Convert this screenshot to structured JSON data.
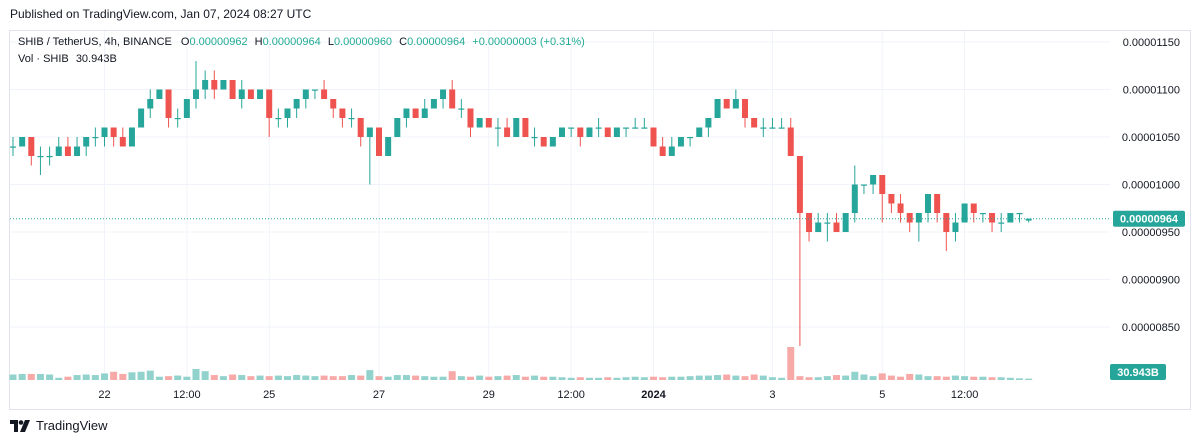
{
  "header": {
    "published": "Published on TradingView.com, Jan 07, 2024 08:27 UTC"
  },
  "legend": {
    "symbol": "SHIB / TetherUS, 4h, BINANCE",
    "open_label": "O",
    "open": "0.00000962",
    "high_label": "H",
    "high": "0.00000964",
    "low_label": "L",
    "low": "0.00000960",
    "close_label": "C",
    "close": "0.00000964",
    "change": "+0.00000003 (+0.31%)",
    "volume_label": "Vol · SHIB",
    "volume": "30.943B"
  },
  "footer": {
    "brand": "TradingView"
  },
  "colors": {
    "up": "#26a69a",
    "down": "#ef5350",
    "up_volume": "#92d2cc",
    "down_volume": "#f7a9a7",
    "grid": "#f0f3fa",
    "price_line": "#26a69a",
    "text": "#131722"
  },
  "chart_data": {
    "type": "candlestick",
    "title": "SHIB / TetherUS, 4h, BINANCE",
    "y_axis": {
      "unit": "USDT",
      "ylim": [
        8.05e-06,
        1.175e-05
      ],
      "tick_values": [
        1.15e-05,
        1.1e-05,
        1.05e-05,
        1e-05,
        9.5e-06,
        9e-06,
        8.5e-06
      ],
      "tick_labels": [
        "0.00001150",
        "0.00001100",
        "0.00001050",
        "0.00001000",
        "0.00000950",
        "0.00000900",
        "0.00000850"
      ]
    },
    "x_axis": {
      "labels": [
        {
          "label": "22",
          "bar": 10
        },
        {
          "label": "12:00",
          "bar": 19
        },
        {
          "label": "25",
          "bar": 28
        },
        {
          "label": "27",
          "bar": 40
        },
        {
          "label": "29",
          "bar": 52
        },
        {
          "label": "12:00",
          "bar": 61
        },
        {
          "label": "2024",
          "bar": 70
        },
        {
          "label": "3",
          "bar": 83
        },
        {
          "label": "5",
          "bar": 95
        },
        {
          "label": "12:00",
          "bar": 104
        }
      ]
    },
    "last_price": 9.64e-06,
    "last_price_label": "0.00000964",
    "volume_label": "30.943B",
    "candles_ohlc": [
      [
        1.04e-05,
        1.05e-05,
        1.03e-05,
        1.04e-05
      ],
      [
        1.04e-05,
        1.05e-05,
        1.04e-05,
        1.05e-05
      ],
      [
        1.05e-05,
        1.05e-05,
        1.02e-05,
        1.03e-05
      ],
      [
        1.03e-05,
        1.04e-05,
        1.01e-05,
        1.03e-05
      ],
      [
        1.03e-05,
        1.04e-05,
        1.02e-05,
        1.03e-05
      ],
      [
        1.03e-05,
        1.05e-05,
        1.03e-05,
        1.04e-05
      ],
      [
        1.04e-05,
        1.05e-05,
        1.03e-05,
        1.03e-05
      ],
      [
        1.03e-05,
        1.05e-05,
        1.03e-05,
        1.04e-05
      ],
      [
        1.04e-05,
        1.05e-05,
        1.03e-05,
        1.05e-05
      ],
      [
        1.05e-05,
        1.06e-05,
        1.04e-05,
        1.05e-05
      ],
      [
        1.05e-05,
        1.06e-05,
        1.04e-05,
        1.06e-05
      ],
      [
        1.06e-05,
        1.06e-05,
        1.04e-05,
        1.05e-05
      ],
      [
        1.05e-05,
        1.06e-05,
        1.04e-05,
        1.04e-05
      ],
      [
        1.04e-05,
        1.06e-05,
        1.04e-05,
        1.06e-05
      ],
      [
        1.06e-05,
        1.08e-05,
        1.06e-05,
        1.08e-05
      ],
      [
        1.08e-05,
        1.1e-05,
        1.07e-05,
        1.09e-05
      ],
      [
        1.09e-05,
        1.1e-05,
        1.09e-05,
        1.1e-05
      ],
      [
        1.1e-05,
        1.1e-05,
        1.06e-05,
        1.07e-05
      ],
      [
        1.07e-05,
        1.08e-05,
        1.06e-05,
        1.07e-05
      ],
      [
        1.07e-05,
        1.09e-05,
        1.07e-05,
        1.09e-05
      ],
      [
        1.09e-05,
        1.13e-05,
        1.08e-05,
        1.1e-05
      ],
      [
        1.1e-05,
        1.12e-05,
        1.09e-05,
        1.11e-05
      ],
      [
        1.11e-05,
        1.12e-05,
        1.09e-05,
        1.1e-05
      ],
      [
        1.1e-05,
        1.11e-05,
        1.1e-05,
        1.11e-05
      ],
      [
        1.11e-05,
        1.11e-05,
        1.09e-05,
        1.09e-05
      ],
      [
        1.09e-05,
        1.11e-05,
        1.08e-05,
        1.1e-05
      ],
      [
        1.1e-05,
        1.1e-05,
        1.09e-05,
        1.09e-05
      ],
      [
        1.09e-05,
        1.1e-05,
        1.09e-05,
        1.1e-05
      ],
      [
        1.1e-05,
        1.1e-05,
        1.05e-05,
        1.07e-05
      ],
      [
        1.07e-05,
        1.08e-05,
        1.06e-05,
        1.07e-05
      ],
      [
        1.07e-05,
        1.08e-05,
        1.06e-05,
        1.08e-05
      ],
      [
        1.08e-05,
        1.09e-05,
        1.07e-05,
        1.09e-05
      ],
      [
        1.09e-05,
        1.1e-05,
        1.08e-05,
        1.1e-05
      ],
      [
        1.1e-05,
        1.1e-05,
        1.09e-05,
        1.1e-05
      ],
      [
        1.1e-05,
        1.11e-05,
        1.09e-05,
        1.09e-05
      ],
      [
        1.09e-05,
        1.09e-05,
        1.07e-05,
        1.08e-05
      ],
      [
        1.08e-05,
        1.08e-05,
        1.06e-05,
        1.07e-05
      ],
      [
        1.07e-05,
        1.08e-05,
        1.06e-05,
        1.07e-05
      ],
      [
        1.07e-05,
        1.07e-05,
        1.04e-05,
        1.05e-05
      ],
      [
        1.05e-05,
        1.06e-05,
        1e-05,
        1.06e-05
      ],
      [
        1.06e-05,
        1.06e-05,
        1.03e-05,
        1.03e-05
      ],
      [
        1.03e-05,
        1.05e-05,
        1.03e-05,
        1.05e-05
      ],
      [
        1.05e-05,
        1.07e-05,
        1.05e-05,
        1.07e-05
      ],
      [
        1.07e-05,
        1.08e-05,
        1.06e-05,
        1.08e-05
      ],
      [
        1.08e-05,
        1.08e-05,
        1.07e-05,
        1.07e-05
      ],
      [
        1.07e-05,
        1.09e-05,
        1.07e-05,
        1.08e-05
      ],
      [
        1.08e-05,
        1.09e-05,
        1.08e-05,
        1.09e-05
      ],
      [
        1.09e-05,
        1.1e-05,
        1.08e-05,
        1.1e-05
      ],
      [
        1.1e-05,
        1.11e-05,
        1.08e-05,
        1.08e-05
      ],
      [
        1.08e-05,
        1.09e-05,
        1.07e-05,
        1.08e-05
      ],
      [
        1.08e-05,
        1.08e-05,
        1.05e-05,
        1.06e-05
      ],
      [
        1.06e-05,
        1.07e-05,
        1.06e-05,
        1.07e-05
      ],
      [
        1.07e-05,
        1.07e-05,
        1.06e-05,
        1.06e-05
      ],
      [
        1.06e-05,
        1.07e-05,
        1.04e-05,
        1.06e-05
      ],
      [
        1.06e-05,
        1.07e-05,
        1.05e-05,
        1.05e-05
      ],
      [
        1.05e-05,
        1.07e-05,
        1.05e-05,
        1.07e-05
      ],
      [
        1.07e-05,
        1.07e-05,
        1.05e-05,
        1.05e-05
      ],
      [
        1.05e-05,
        1.06e-05,
        1.04e-05,
        1.05e-05
      ],
      [
        1.05e-05,
        1.05e-05,
        1.04e-05,
        1.04e-05
      ],
      [
        1.04e-05,
        1.05e-05,
        1.04e-05,
        1.05e-05
      ],
      [
        1.05e-05,
        1.06e-05,
        1.05e-05,
        1.06e-05
      ],
      [
        1.06e-05,
        1.06e-05,
        1.05e-05,
        1.06e-05
      ],
      [
        1.06e-05,
        1.06e-05,
        1.04e-05,
        1.05e-05
      ],
      [
        1.05e-05,
        1.06e-05,
        1.05e-05,
        1.06e-05
      ],
      [
        1.06e-05,
        1.07e-05,
        1.05e-05,
        1.06e-05
      ],
      [
        1.06e-05,
        1.06e-05,
        1.05e-05,
        1.05e-05
      ],
      [
        1.05e-05,
        1.06e-05,
        1.05e-05,
        1.06e-05
      ],
      [
        1.06e-05,
        1.06e-05,
        1.05e-05,
        1.06e-05
      ],
      [
        1.06e-05,
        1.07e-05,
        1.06e-05,
        1.06e-05
      ],
      [
        1.06e-05,
        1.07e-05,
        1.06e-05,
        1.06e-05
      ],
      [
        1.06e-05,
        1.06e-05,
        1.04e-05,
        1.04e-05
      ],
      [
        1.04e-05,
        1.05e-05,
        1.03e-05,
        1.03e-05
      ],
      [
        1.03e-05,
        1.05e-05,
        1.03e-05,
        1.04e-05
      ],
      [
        1.04e-05,
        1.05e-05,
        1.04e-05,
        1.05e-05
      ],
      [
        1.05e-05,
        1.05e-05,
        1.04e-05,
        1.05e-05
      ],
      [
        1.05e-05,
        1.06e-05,
        1.05e-05,
        1.06e-05
      ],
      [
        1.06e-05,
        1.07e-05,
        1.05e-05,
        1.07e-05
      ],
      [
        1.07e-05,
        1.09e-05,
        1.07e-05,
        1.09e-05
      ],
      [
        1.09e-05,
        1.09e-05,
        1.08e-05,
        1.08e-05
      ],
      [
        1.08e-05,
        1.1e-05,
        1.08e-05,
        1.09e-05
      ],
      [
        1.09e-05,
        1.09e-05,
        1.06e-05,
        1.07e-05
      ],
      [
        1.07e-05,
        1.07e-05,
        1.06e-05,
        1.06e-05
      ],
      [
        1.06e-05,
        1.07e-05,
        1.05e-05,
        1.06e-05
      ],
      [
        1.06e-05,
        1.07e-05,
        1.06e-05,
        1.06e-05
      ],
      [
        1.06e-05,
        1.07e-05,
        1.06e-05,
        1.06e-05
      ],
      [
        1.06e-05,
        1.07e-05,
        1.03e-05,
        1.03e-05
      ],
      [
        1.03e-05,
        1.03e-05,
        8.3e-06,
        9.7e-06
      ],
      [
        9.7e-06,
        9.7e-06,
        9.4e-06,
        9.5e-06
      ],
      [
        9.5e-06,
        9.7e-06,
        9.5e-06,
        9.6e-06
      ],
      [
        9.6e-06,
        9.7e-06,
        9.4e-06,
        9.6e-06
      ],
      [
        9.6e-06,
        9.7e-06,
        9.5e-06,
        9.5e-06
      ],
      [
        9.5e-06,
        9.7e-06,
        9.5e-06,
        9.7e-06
      ],
      [
        9.7e-06,
        1.02e-05,
        9.6e-06,
        1e-05
      ],
      [
        1e-05,
        1e-05,
        9.9e-06,
        1e-05
      ],
      [
        1e-05,
        1.01e-05,
        9.9e-06,
        1.01e-05
      ],
      [
        1.01e-05,
        1.01e-05,
        9.6e-06,
        9.9e-06
      ],
      [
        9.9e-06,
        9.9e-06,
        9.7e-06,
        9.8e-06
      ],
      [
        9.8e-06,
        9.9e-06,
        9.6e-06,
        9.7e-06
      ],
      [
        9.7e-06,
        9.7e-06,
        9.5e-06,
        9.6e-06
      ],
      [
        9.6e-06,
        9.7e-06,
        9.4e-06,
        9.7e-06
      ],
      [
        9.7e-06,
        9.9e-06,
        9.6e-06,
        9.9e-06
      ],
      [
        9.9e-06,
        9.9e-06,
        9.6e-06,
        9.7e-06
      ],
      [
        9.7e-06,
        9.7e-06,
        9.3e-06,
        9.5e-06
      ],
      [
        9.5e-06,
        9.7e-06,
        9.4e-06,
        9.6e-06
      ],
      [
        9.6e-06,
        9.8e-06,
        9.6e-06,
        9.8e-06
      ],
      [
        9.8e-06,
        9.8e-06,
        9.6e-06,
        9.7e-06
      ],
      [
        9.7e-06,
        9.7e-06,
        9.6e-06,
        9.7e-06
      ],
      [
        9.7e-06,
        9.7e-06,
        9.5e-06,
        9.6e-06
      ],
      [
        9.6e-06,
        9.7e-06,
        9.5e-06,
        9.6e-06
      ],
      [
        9.6e-06,
        9.7e-06,
        9.6e-06,
        9.7e-06
      ],
      [
        9.7e-06,
        9.7e-06,
        9.6e-06,
        9.7e-06
      ],
      [
        9.62e-06,
        9.64e-06,
        9.6e-06,
        9.64e-06
      ]
    ],
    "volume_relative": [
      0.5,
      0.55,
      0.55,
      0.55,
      0.5,
      0.2,
      0.3,
      0.45,
      0.5,
      0.45,
      0.6,
      0.75,
      0.55,
      0.7,
      0.75,
      0.85,
      0.3,
      0.35,
      0.4,
      0.3,
      1.0,
      0.8,
      0.45,
      0.35,
      0.5,
      0.45,
      0.35,
      0.4,
      0.35,
      0.4,
      0.35,
      0.45,
      0.4,
      0.35,
      0.4,
      0.35,
      0.35,
      0.45,
      0.4,
      0.9,
      0.35,
      0.3,
      0.45,
      0.45,
      0.4,
      0.35,
      0.3,
      0.3,
      0.8,
      0.35,
      0.3,
      0.4,
      0.3,
      0.35,
      0.4,
      0.45,
      0.3,
      0.4,
      0.3,
      0.3,
      0.25,
      0.2,
      0.25,
      0.2,
      0.2,
      0.25,
      0.2,
      0.25,
      0.3,
      0.25,
      0.3,
      0.25,
      0.3,
      0.3,
      0.35,
      0.4,
      0.4,
      0.45,
      0.5,
      0.4,
      0.35,
      0.5,
      0.4,
      0.25,
      0.2,
      3.0,
      0.35,
      0.25,
      0.25,
      0.35,
      0.45,
      0.4,
      0.75,
      0.5,
      0.35,
      0.6,
      0.4,
      0.3,
      0.55,
      0.5,
      0.35,
      0.35,
      0.3,
      0.4,
      0.35,
      0.3,
      0.3,
      0.25,
      0.25,
      0.2,
      0.15,
      0.12
    ]
  }
}
